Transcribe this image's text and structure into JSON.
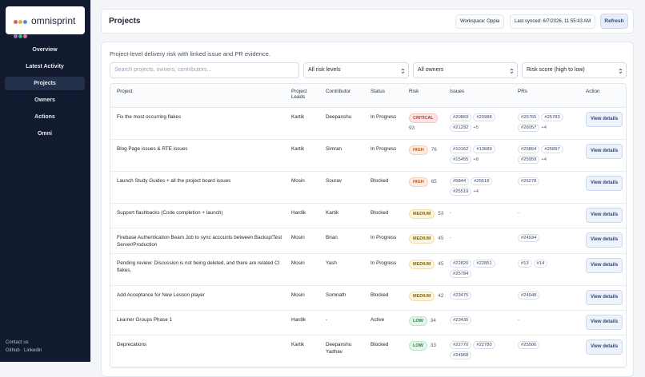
{
  "sidebar": {
    "brand": "omnisprint",
    "nav": [
      "Overview",
      "Latest Activity",
      "Projects",
      "Owners",
      "Actions",
      "Omni"
    ],
    "active": "Projects",
    "footer": {
      "contact": "Contact us",
      "github": "Github",
      "separator": "·",
      "linkedin": "Linkedin"
    }
  },
  "header": {
    "title": "Projects",
    "workspace": "Workspace: Oppia",
    "synced": "Last synced: 6/7/2026, 11:55:43 AM",
    "refresh": "Refresh"
  },
  "panel": {
    "description": "Project-level delivery risk with linked issue and PR evidence.",
    "search": "Search projects, owners, contributors...",
    "filters": [
      "All risk levels",
      "All owners",
      "Risk score (high to low)"
    ]
  },
  "table": {
    "columns": [
      "Project",
      "Project Leads",
      "Contributor",
      "Status",
      "Risk",
      "Issues",
      "PRs",
      "Action"
    ],
    "rows": [
      {
        "project": "Fix the most occurring flakes",
        "lead": "Kartik",
        "contributor": "Deepanshu",
        "status": "In Progress",
        "risk": "CRITICAL",
        "score": 93,
        "issues": [
          "#20869",
          "#20988",
          "#21292"
        ],
        "issues_more": "+5",
        "prs": [
          "#25765",
          "#25783",
          "#26057"
        ],
        "prs_more": "+4",
        "action": "View details"
      },
      {
        "project": "Blog Page issues & RTE issues",
        "lead": "Kartik",
        "contributor": "Simran",
        "status": "In Progress",
        "risk": "HIGH",
        "score": 76,
        "issues": [
          "#10162",
          "#13689",
          "#15455"
        ],
        "issues_more": "+8",
        "prs": [
          "#25864",
          "#25897",
          "#25959"
        ],
        "prs_more": "+4",
        "action": "View details"
      },
      {
        "project": "Launch Study Guides + all the project board issues",
        "lead": "Mosin",
        "contributor": "Sourav",
        "status": "Blocked",
        "risk": "HIGH",
        "score": 65,
        "issues": [
          "#5844",
          "#25518",
          "#25519"
        ],
        "issues_more": "+4",
        "prs": [
          "#26278"
        ],
        "action": "View details"
      },
      {
        "project": "Support flashbacks (Code completion + launch)",
        "lead": "Hardik",
        "contributor": "Kartik",
        "status": "Blocked",
        "risk": "MEDIUM",
        "score": 53,
        "issues": "-",
        "prs": "-",
        "action": "View details"
      },
      {
        "project": "Firebase Authentication Beam Job to sync accounts between Backup/Test Server/Production",
        "lead": "Mosin",
        "contributor": "Brian",
        "status": "In Progress",
        "risk": "MEDIUM",
        "score": 45,
        "issues": "-",
        "prs": [
          "#24934"
        ],
        "action": "View details"
      },
      {
        "project": "Pending review: Discussion is not being deleted, and there are related CI flakes.",
        "lead": "Mosin",
        "contributor": "Yash",
        "status": "In Progress",
        "risk": "MEDIUM",
        "score": 45,
        "issues": [
          "#22820",
          "#22851",
          "#25784"
        ],
        "prs": [
          "#13",
          "#14"
        ],
        "action": "View details"
      },
      {
        "project": "Add Acceptance for New Lesson player",
        "lead": "Mosin",
        "contributor": "Somnath",
        "status": "Blocked",
        "risk": "MEDIUM",
        "score": 42,
        "issues": [
          "#23475"
        ],
        "prs": [
          "#24948"
        ],
        "action": "View details"
      },
      {
        "project": "Learner Groups Phase 1",
        "lead": "Hardik",
        "contributor": "-",
        "status": "Active",
        "risk": "LOW",
        "score": 34,
        "issues": [
          "#23435"
        ],
        "prs": "-",
        "action": "View details"
      },
      {
        "project": "Deprecations",
        "lead": "Kartik",
        "contributor": "Deepanshu Yadhav",
        "status": "Blocked",
        "risk": "LOW",
        "score": 33,
        "issues": [
          "#22770",
          "#22780",
          "#24968"
        ],
        "prs": [
          "#25506"
        ],
        "action": "View details"
      }
    ]
  }
}
